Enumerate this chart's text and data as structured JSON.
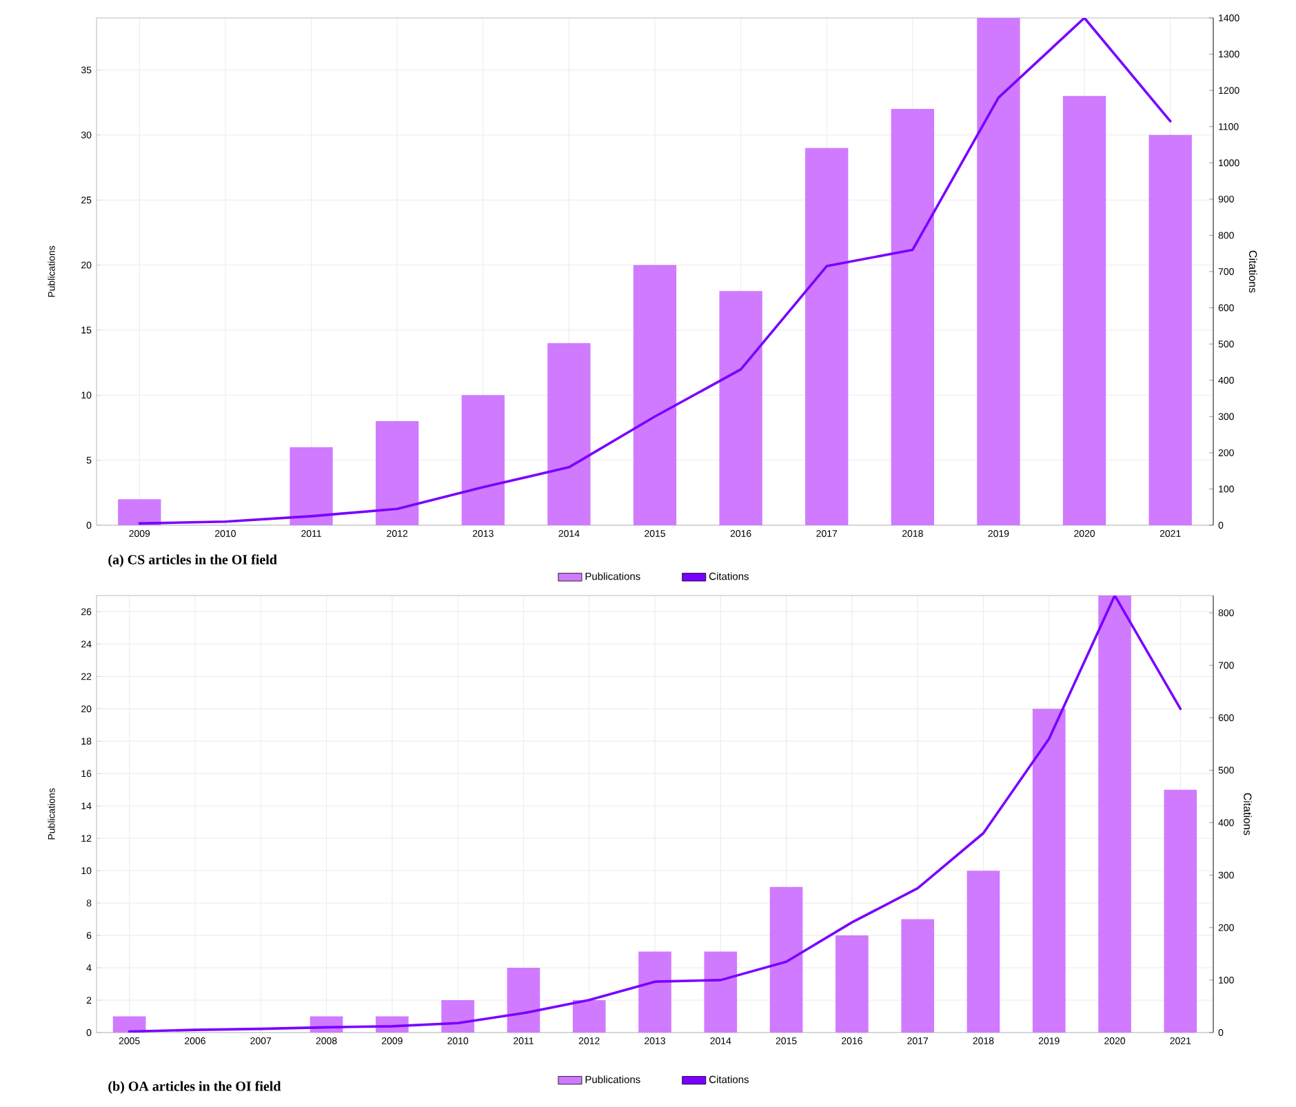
{
  "chart_data": [
    {
      "type": "bar",
      "title": "(a) CS articles in the OI field",
      "ylabel": "Publications",
      "y2label": "Citations",
      "categories": [
        "2009",
        "2010",
        "2011",
        "2012",
        "2013",
        "2014",
        "2015",
        "2016",
        "2017",
        "2018",
        "2019",
        "2020",
        "2021"
      ],
      "series": [
        {
          "name": "Publications",
          "type": "bar",
          "color": "#cf7aff",
          "values": [
            2,
            0,
            6,
            8,
            10,
            14,
            20,
            18,
            29,
            32,
            39,
            33,
            30
          ]
        },
        {
          "name": "Citations",
          "type": "line",
          "axis": "y2",
          "color": "#7a00ff",
          "values": [
            5,
            10,
            25,
            45,
            105,
            160,
            300,
            430,
            715,
            760,
            1180,
            1400,
            1115
          ]
        }
      ],
      "ylim": [
        0,
        39
      ],
      "yticks": [
        0,
        5,
        10,
        15,
        20,
        25,
        30,
        35
      ],
      "y2lim": [
        0,
        1400
      ],
      "y2ticks": [
        0,
        100,
        200,
        300,
        400,
        500,
        600,
        700,
        800,
        900,
        1000,
        1100,
        1200,
        1300,
        1400
      ],
      "grid": true,
      "legend": "bottom"
    },
    {
      "type": "bar",
      "title": "(b) OA articles in the OI field",
      "ylabel": "Publications",
      "y2label": "Citations",
      "categories": [
        "2005",
        "2006",
        "2007",
        "2008",
        "2009",
        "2010",
        "2011",
        "2012",
        "2013",
        "2014",
        "2015",
        "2016",
        "2017",
        "2018",
        "2019",
        "2020",
        "2021"
      ],
      "series": [
        {
          "name": "Publications",
          "type": "bar",
          "color": "#cf7aff",
          "values": [
            1,
            0,
            0,
            1,
            1,
            2,
            4,
            2,
            5,
            5,
            9,
            6,
            7,
            10,
            20,
            27,
            15
          ]
        },
        {
          "name": "Citations",
          "type": "line",
          "axis": "y2",
          "color": "#7a00ff",
          "values": [
            2,
            5,
            7,
            10,
            12,
            18,
            37,
            62,
            97,
            100,
            135,
            210,
            275,
            380,
            560,
            833,
            617
          ]
        }
      ],
      "ylim": [
        0,
        27
      ],
      "yticks": [
        0,
        2,
        4,
        6,
        8,
        10,
        12,
        14,
        16,
        18,
        20,
        22,
        24,
        26
      ],
      "y2lim": [
        0,
        833
      ],
      "y2ticks": [
        0,
        100,
        200,
        300,
        400,
        500,
        600,
        700,
        800
      ],
      "grid": true,
      "legend": "bottom"
    }
  ]
}
